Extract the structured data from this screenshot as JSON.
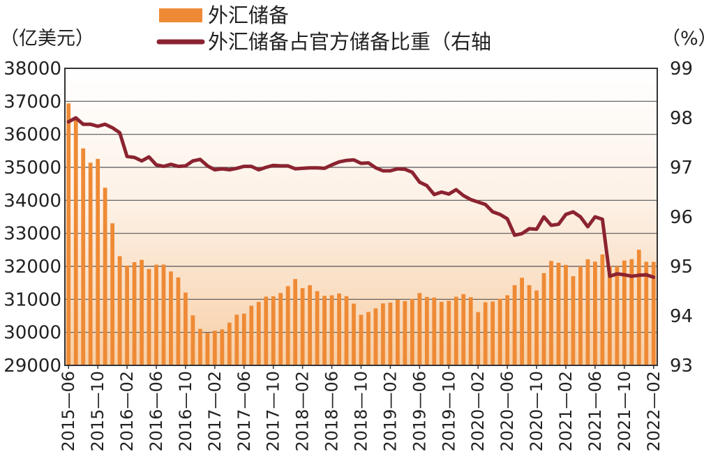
{
  "chart_data": {
    "type": "bar+line",
    "legend": {
      "bar_label": "外汇储备",
      "line_label": "外汇储备占官方储备比重（右轴"
    },
    "y_left": {
      "unit_label": "（亿美元）",
      "min": 29000,
      "max": 38000,
      "ticks": [
        29000,
        30000,
        31000,
        32000,
        33000,
        34000,
        35000,
        36000,
        37000,
        38000
      ]
    },
    "y_right": {
      "unit_label": "（%）",
      "min": 93,
      "max": 99,
      "ticks": [
        93,
        94,
        95,
        96,
        97,
        98,
        99
      ]
    },
    "x_tick_labels": [
      "2015—06",
      "2015—10",
      "2016—02",
      "2016—06",
      "2016—10",
      "2017—02",
      "2017—06",
      "2017—10",
      "2018—02",
      "2018—06",
      "2018—10",
      "2019—02",
      "2019—06",
      "2019—10",
      "2020—02",
      "2020—06",
      "2020—10",
      "2021—02",
      "2021—06",
      "2021—10",
      "2022—02"
    ],
    "start_month": "2015-06",
    "series": [
      {
        "name": "外汇储备",
        "type": "bar",
        "axis": "left",
        "values": [
          36938,
          36513,
          35574,
          35141,
          35255,
          34383,
          33304,
          32309,
          32023,
          32128,
          32197,
          31917,
          32051,
          32053,
          31845,
          31664,
          31206,
          30516,
          30105,
          29982,
          30051,
          30091,
          30295,
          30536,
          30568,
          30807,
          30921,
          31081,
          31092,
          31193,
          31399,
          31615,
          31340,
          31428,
          31249,
          31106,
          31121,
          31179,
          31097,
          30870,
          30531,
          30617,
          30727,
          30879,
          30901,
          30988,
          30947,
          31010,
          31192,
          31072,
          31056,
          30924,
          30955,
          31079,
          31160,
          31064,
          30615,
          30912,
          30934,
          31017,
          31124,
          31430,
          31654,
          31429,
          31268,
          31794,
          32165,
          32108,
          32045,
          31701,
          32000,
          32214,
          32141,
          32360,
          32007,
          32002,
          32176,
          32218,
          32502,
          32138,
          32135
        ]
      },
      {
        "name": "外汇储备占官方储备比重",
        "type": "line",
        "axis": "right",
        "values": [
          97.92,
          98.0,
          97.87,
          97.87,
          97.83,
          97.87,
          97.8,
          97.7,
          97.22,
          97.2,
          97.13,
          97.21,
          97.05,
          97.02,
          97.06,
          97.02,
          97.03,
          97.13,
          97.16,
          97.03,
          96.95,
          96.97,
          96.95,
          96.98,
          97.02,
          97.02,
          96.95,
          97.0,
          97.04,
          97.03,
          97.03,
          96.97,
          96.98,
          96.99,
          96.99,
          96.98,
          97.05,
          97.11,
          97.14,
          97.15,
          97.08,
          97.09,
          96.99,
          96.93,
          96.93,
          96.97,
          96.96,
          96.9,
          96.7,
          96.63,
          96.45,
          96.5,
          96.46,
          96.55,
          96.43,
          96.35,
          96.3,
          96.25,
          96.1,
          96.05,
          95.96,
          95.63,
          95.66,
          95.76,
          95.75,
          96.0,
          95.83,
          95.85,
          96.05,
          96.1,
          96.0,
          95.8,
          96.0,
          95.95,
          94.8,
          94.85,
          94.83,
          94.8,
          94.82,
          94.83,
          94.78
        ]
      }
    ],
    "colors": {
      "bar": "#ee8a35",
      "line": "#8b2330",
      "grid": "#555555",
      "bg_top": "#ffffff",
      "bg_bottom": "#f7cfa6"
    }
  }
}
